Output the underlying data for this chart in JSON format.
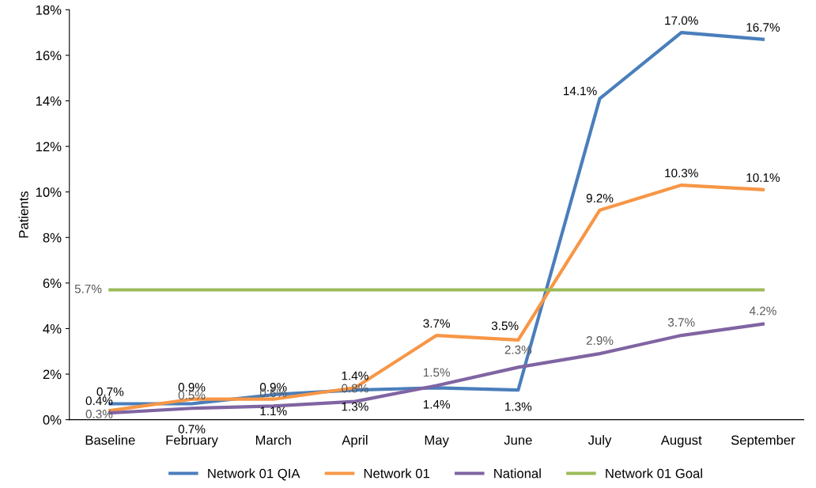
{
  "chart_data": {
    "type": "line",
    "ylabel": "Patients",
    "categories": [
      "Baseline",
      "February",
      "March",
      "April",
      "May",
      "June",
      "July",
      "August",
      "September"
    ],
    "ylim": [
      0,
      18
    ],
    "yticks": [
      {
        "value": 0,
        "label": "0%"
      },
      {
        "value": 2,
        "label": "2%"
      },
      {
        "value": 4,
        "label": "4%"
      },
      {
        "value": 6,
        "label": "6%"
      },
      {
        "value": 8,
        "label": "8%"
      },
      {
        "value": 10,
        "label": "10%"
      },
      {
        "value": 12,
        "label": "12%"
      },
      {
        "value": 14,
        "label": "14%"
      },
      {
        "value": 16,
        "label": "16%"
      },
      {
        "value": 18,
        "label": "18%"
      }
    ],
    "grid": false,
    "legend": "bottom",
    "marker": "none",
    "line_style": "solid",
    "series": [
      {
        "name": "Network 01 QIA",
        "color": "#4a7ebb",
        "values": [
          0.7,
          0.7,
          1.1,
          1.3,
          1.4,
          1.3,
          14.1,
          17.0,
          16.7
        ],
        "value_labels": [
          "0.7%",
          "0.7%",
          "1.1%",
          "1.3%",
          "1.4%",
          "1.3%",
          "14.1%",
          "17.0%",
          "16.7%"
        ]
      },
      {
        "name": "Network 01",
        "color": "#f79646",
        "values": [
          0.4,
          0.9,
          0.9,
          1.4,
          3.7,
          3.5,
          9.2,
          10.3,
          10.1
        ],
        "value_labels": [
          "0.4%",
          "0.9%",
          "0.9%",
          "1.4%",
          "3.7%",
          "3.5%",
          "9.2%",
          "10.3%",
          "10.1%"
        ]
      },
      {
        "name": "National",
        "color": "#8064a2",
        "values": [
          0.3,
          0.5,
          0.6,
          0.8,
          1.5,
          2.3,
          2.9,
          3.7,
          4.2
        ],
        "value_labels": [
          "0.3%",
          "0.5%",
          "0.6%",
          "0.8%",
          "1.5%",
          "2.3%",
          "2.9%",
          "3.7%",
          "4.2%"
        ]
      },
      {
        "name": "Network 01 Goal",
        "color": "#9bbb59",
        "values": [
          5.7,
          5.7,
          5.7,
          5.7,
          5.7,
          5.7,
          5.7,
          5.7,
          5.7
        ],
        "value_labels": [
          "5.7%",
          null,
          null,
          null,
          null,
          null,
          null,
          null,
          null
        ]
      }
    ]
  }
}
